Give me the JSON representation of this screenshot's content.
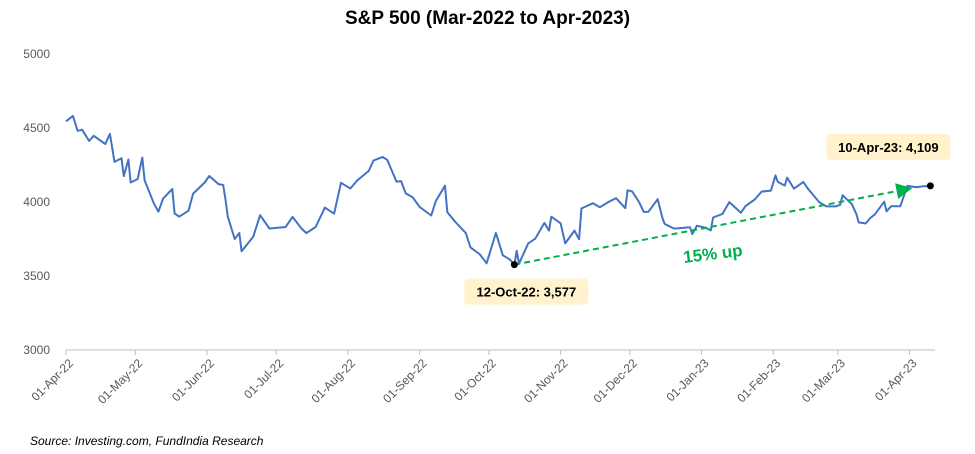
{
  "chart_data": {
    "type": "line",
    "title": "S&P 500 (Mar-2022 to Apr-2023)",
    "source": "Source: Investing.com, FundIndia Research",
    "ylim": [
      3000,
      5000
    ],
    "yticks": [
      "5000",
      "4500",
      "4000",
      "3500",
      "3000"
    ],
    "xlim": [
      "2022-04-01",
      "2023-04-12"
    ],
    "xticks": [
      {
        "date": "2022-04-01",
        "label": "01-Apr-22"
      },
      {
        "date": "2022-05-01",
        "label": "01-May-22"
      },
      {
        "date": "2022-06-01",
        "label": "01-Jun-22"
      },
      {
        "date": "2022-07-01",
        "label": "01-Jul-22"
      },
      {
        "date": "2022-08-01",
        "label": "01-Aug-22"
      },
      {
        "date": "2022-09-01",
        "label": "01-Sep-22"
      },
      {
        "date": "2022-10-01",
        "label": "01-Oct-22"
      },
      {
        "date": "2022-11-01",
        "label": "01-Nov-22"
      },
      {
        "date": "2022-12-01",
        "label": "01-Dec-22"
      },
      {
        "date": "2023-01-01",
        "label": "01-Jan-23"
      },
      {
        "date": "2023-02-01",
        "label": "01-Feb-23"
      },
      {
        "date": "2023-03-01",
        "label": "01-Mar-23"
      },
      {
        "date": "2023-04-01",
        "label": "01-Apr-23"
      }
    ],
    "series": [
      {
        "color": "#4472c4",
        "points": [
          [
            "2022-04-01",
            4545
          ],
          [
            "2022-04-04",
            4582
          ],
          [
            "2022-04-06",
            4481
          ],
          [
            "2022-04-08",
            4488
          ],
          [
            "2022-04-11",
            4412
          ],
          [
            "2022-04-13",
            4447
          ],
          [
            "2022-04-18",
            4392
          ],
          [
            "2022-04-20",
            4460
          ],
          [
            "2022-04-22",
            4271
          ],
          [
            "2022-04-25",
            4296
          ],
          [
            "2022-04-26",
            4175
          ],
          [
            "2022-04-28",
            4287
          ],
          [
            "2022-04-29",
            4132
          ],
          [
            "2022-05-02",
            4155
          ],
          [
            "2022-05-04",
            4300
          ],
          [
            "2022-05-05",
            4146
          ],
          [
            "2022-05-09",
            3991
          ],
          [
            "2022-05-11",
            3935
          ],
          [
            "2022-05-13",
            4023
          ],
          [
            "2022-05-17",
            4088
          ],
          [
            "2022-05-18",
            3923
          ],
          [
            "2022-05-20",
            3901
          ],
          [
            "2022-05-24",
            3941
          ],
          [
            "2022-05-26",
            4057
          ],
          [
            "2022-05-31",
            4132
          ],
          [
            "2022-06-02",
            4176
          ],
          [
            "2022-06-06",
            4121
          ],
          [
            "2022-06-08",
            4115
          ],
          [
            "2022-06-09",
            4017
          ],
          [
            "2022-06-10",
            3901
          ],
          [
            "2022-06-13",
            3750
          ],
          [
            "2022-06-15",
            3790
          ],
          [
            "2022-06-16",
            3667
          ],
          [
            "2022-06-21",
            3765
          ],
          [
            "2022-06-24",
            3911
          ],
          [
            "2022-06-28",
            3821
          ],
          [
            "2022-07-01",
            3825
          ],
          [
            "2022-07-05",
            3831
          ],
          [
            "2022-07-08",
            3899
          ],
          [
            "2022-07-12",
            3819
          ],
          [
            "2022-07-14",
            3790
          ],
          [
            "2022-07-18",
            3831
          ],
          [
            "2022-07-22",
            3962
          ],
          [
            "2022-07-26",
            3921
          ],
          [
            "2022-07-29",
            4130
          ],
          [
            "2022-08-02",
            4091
          ],
          [
            "2022-08-05",
            4145
          ],
          [
            "2022-08-10",
            4210
          ],
          [
            "2022-08-12",
            4280
          ],
          [
            "2022-08-16",
            4305
          ],
          [
            "2022-08-18",
            4284
          ],
          [
            "2022-08-22",
            4138
          ],
          [
            "2022-08-24",
            4141
          ],
          [
            "2022-08-26",
            4058
          ],
          [
            "2022-08-29",
            4031
          ],
          [
            "2022-09-01",
            3967
          ],
          [
            "2022-09-06",
            3909
          ],
          [
            "2022-09-08",
            4006
          ],
          [
            "2022-09-12",
            4110
          ],
          [
            "2022-09-13",
            3932
          ],
          [
            "2022-09-16",
            3873
          ],
          [
            "2022-09-21",
            3790
          ],
          [
            "2022-09-23",
            3693
          ],
          [
            "2022-09-27",
            3647
          ],
          [
            "2022-09-30",
            3586
          ],
          [
            "2022-10-04",
            3791
          ],
          [
            "2022-10-07",
            3640
          ],
          [
            "2022-10-10",
            3612
          ],
          [
            "2022-10-12",
            3577
          ],
          [
            "2022-10-13",
            3670
          ],
          [
            "2022-10-14",
            3583
          ],
          [
            "2022-10-18",
            3720
          ],
          [
            "2022-10-21",
            3752
          ],
          [
            "2022-10-25",
            3859
          ],
          [
            "2022-10-27",
            3807
          ],
          [
            "2022-10-28",
            3901
          ],
          [
            "2022-11-01",
            3856
          ],
          [
            "2022-11-03",
            3720
          ],
          [
            "2022-11-07",
            3807
          ],
          [
            "2022-11-09",
            3748
          ],
          [
            "2022-11-10",
            3956
          ],
          [
            "2022-11-15",
            3992
          ],
          [
            "2022-11-18",
            3965
          ],
          [
            "2022-11-22",
            4003
          ],
          [
            "2022-11-25",
            4026
          ],
          [
            "2022-11-29",
            3958
          ],
          [
            "2022-11-30",
            4080
          ],
          [
            "2022-12-02",
            4071
          ],
          [
            "2022-12-05",
            3998
          ],
          [
            "2022-12-07",
            3933
          ],
          [
            "2022-12-09",
            3934
          ],
          [
            "2022-12-13",
            4019
          ],
          [
            "2022-12-15",
            3895
          ],
          [
            "2022-12-16",
            3852
          ],
          [
            "2022-12-20",
            3821
          ],
          [
            "2022-12-22",
            3822
          ],
          [
            "2022-12-27",
            3829
          ],
          [
            "2022-12-28",
            3783
          ],
          [
            "2022-12-30",
            3840
          ],
          [
            "2023-01-03",
            3824
          ],
          [
            "2023-01-05",
            3808
          ],
          [
            "2023-01-06",
            3895
          ],
          [
            "2023-01-10",
            3919
          ],
          [
            "2023-01-13",
            3999
          ],
          [
            "2023-01-18",
            3928
          ],
          [
            "2023-01-20",
            3972
          ],
          [
            "2023-01-24",
            4017
          ],
          [
            "2023-01-27",
            4070
          ],
          [
            "2023-01-31",
            4077
          ],
          [
            "2023-02-02",
            4180
          ],
          [
            "2023-02-03",
            4136
          ],
          [
            "2023-02-06",
            4111
          ],
          [
            "2023-02-07",
            4164
          ],
          [
            "2023-02-10",
            4090
          ],
          [
            "2023-02-14",
            4136
          ],
          [
            "2023-02-16",
            4090
          ],
          [
            "2023-02-21",
            3997
          ],
          [
            "2023-02-24",
            3970
          ],
          [
            "2023-02-28",
            3970
          ],
          [
            "2023-03-02",
            3981
          ],
          [
            "2023-03-03",
            4046
          ],
          [
            "2023-03-07",
            3986
          ],
          [
            "2023-03-09",
            3918
          ],
          [
            "2023-03-10",
            3862
          ],
          [
            "2023-03-13",
            3855
          ],
          [
            "2023-03-15",
            3892
          ],
          [
            "2023-03-17",
            3917
          ],
          [
            "2023-03-21",
            4002
          ],
          [
            "2023-03-22",
            3937
          ],
          [
            "2023-03-24",
            3971
          ],
          [
            "2023-03-28",
            3971
          ],
          [
            "2023-03-31",
            4109
          ],
          [
            "2023-04-04",
            4100
          ],
          [
            "2023-04-06",
            4105
          ],
          [
            "2023-04-10",
            4109
          ]
        ]
      }
    ],
    "annotations": [
      {
        "date": "2022-10-12",
        "value": 3577,
        "label": "12-Oct-22: 3,577"
      },
      {
        "date": "2023-04-10",
        "value": 4109,
        "label": "10-Apr-23: 4,109"
      }
    ],
    "trend": {
      "from": "2022-10-12",
      "to": "2023-04-10",
      "label": "15% up",
      "color": "#00b050"
    },
    "callout_fill": "#fff2cc",
    "grid": false
  }
}
